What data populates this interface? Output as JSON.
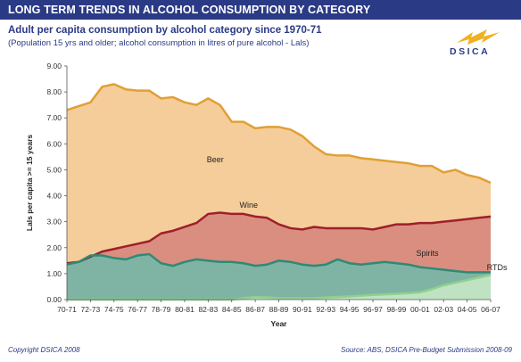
{
  "header": {
    "title": "LONG TERM TRENDS IN ALCOHOL CONSUMPTION BY CATEGORY",
    "subtitle": "Adult per capita consumption by alcohol category since 1970-71",
    "note": "(Population 15 yrs and older; alcohol consumption  in litres of pure alcohol - Lals)"
  },
  "logo": {
    "text": "DSICA",
    "icon": "dsica-wave-logo",
    "color": "#f0b020"
  },
  "footer": {
    "copyright": "Copyright DSICA 2008",
    "source": "Source: ABS, DSICA Pre-Budget Submission 2008-09"
  },
  "chart_data": {
    "type": "area",
    "xlabel": "Year",
    "ylabel": "Lals per capita >= 15 years",
    "ylim": [
      0,
      9
    ],
    "yticks": [
      "0.00",
      "1.00",
      "2.00",
      "3.00",
      "4.00",
      "5.00",
      "6.00",
      "7.00",
      "8.00",
      "9.00"
    ],
    "grid": false,
    "x": [
      "70-71",
      "71-72",
      "72-73",
      "73-74",
      "74-75",
      "75-76",
      "76-77",
      "77-78",
      "78-79",
      "79-80",
      "80-81",
      "81-82",
      "82-83",
      "83-84",
      "84-85",
      "85-86",
      "86-87",
      "87-88",
      "88-89",
      "89-90",
      "90-91",
      "91-92",
      "92-93",
      "93-94",
      "94-95",
      "95-96",
      "96-97",
      "97-98",
      "98-99",
      "99-00",
      "00-01",
      "01-02",
      "02-03",
      "03-04",
      "04-05",
      "05-06",
      "06-07"
    ],
    "xticks": [
      "70-71",
      "72-73",
      "74-75",
      "76-77",
      "78-79",
      "80-81",
      "82-83",
      "84-85",
      "86-87",
      "88-89",
      "90-91",
      "92-93",
      "94-95",
      "96-97",
      "98-99",
      "00-01",
      "02-03",
      "04-05",
      "06-07"
    ],
    "series": [
      {
        "name": "Beer",
        "stack_total": true,
        "color": "#f5cd9a",
        "line_color": "#e0a035",
        "values": [
          7.3,
          7.45,
          7.6,
          8.2,
          8.3,
          8.1,
          8.05,
          8.05,
          7.75,
          7.8,
          7.6,
          7.5,
          7.75,
          7.5,
          6.85,
          6.85,
          6.6,
          6.65,
          6.65,
          6.55,
          6.3,
          5.9,
          5.6,
          5.55,
          5.55,
          5.45,
          5.4,
          5.35,
          5.3,
          5.25,
          5.15,
          5.15,
          4.9,
          5.0,
          4.8,
          4.7,
          4.5
        ]
      },
      {
        "name": "Wine",
        "stack_total": true,
        "color": "#d98e80",
        "line_color": "#9e1f2a",
        "values": [
          1.4,
          1.45,
          1.65,
          1.85,
          1.95,
          2.05,
          2.15,
          2.25,
          2.55,
          2.65,
          2.8,
          2.95,
          3.3,
          3.35,
          3.3,
          3.3,
          3.2,
          3.15,
          2.9,
          2.75,
          2.7,
          2.8,
          2.75,
          2.75,
          2.75,
          2.75,
          2.7,
          2.8,
          2.9,
          2.9,
          2.95,
          2.95,
          3.0,
          3.05,
          3.1,
          3.15,
          3.2
        ]
      },
      {
        "name": "Spirits",
        "stack_total": true,
        "color": "#7fb4a4",
        "line_color": "#2e8a76",
        "values": [
          1.35,
          1.45,
          1.7,
          1.7,
          1.6,
          1.55,
          1.7,
          1.75,
          1.4,
          1.3,
          1.45,
          1.55,
          1.5,
          1.45,
          1.45,
          1.4,
          1.3,
          1.35,
          1.5,
          1.45,
          1.35,
          1.3,
          1.35,
          1.55,
          1.4,
          1.35,
          1.4,
          1.45,
          1.4,
          1.35,
          1.25,
          1.2,
          1.15,
          1.1,
          1.05,
          1.05,
          1.05
        ]
      },
      {
        "name": "RTDs",
        "stack_total": false,
        "color": "#bfe3c2",
        "line_color": "#8fd08f",
        "values": [
          0,
          0,
          0,
          0,
          0,
          0,
          0,
          0,
          0,
          0,
          0,
          0,
          0,
          0,
          0,
          0.05,
          0.1,
          0.08,
          0.05,
          0.05,
          0.05,
          0.05,
          0.08,
          0.1,
          0.12,
          0.15,
          0.18,
          0.2,
          0.22,
          0.25,
          0.28,
          0.4,
          0.55,
          0.65,
          0.75,
          0.85,
          0.95
        ]
      }
    ],
    "label_positions_note": "series labels drawn inside their bands"
  }
}
